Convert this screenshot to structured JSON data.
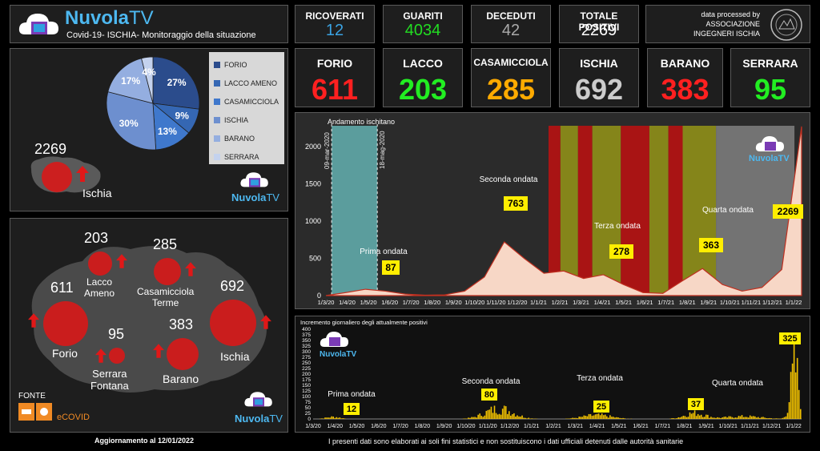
{
  "header": {
    "brand_main": "Nuvola",
    "brand_tv": "TV",
    "subtitle": "Covid-19- ISCHIA- Monitoraggio della situazione"
  },
  "stats": [
    {
      "label": "RICOVERATI",
      "value": "12",
      "color": "#3aa3e3"
    },
    {
      "label": "GUARITI",
      "value": "4034",
      "color": "#22dd22"
    },
    {
      "label": "DECEDUTI",
      "value": "42",
      "color": "#aaaaaa"
    },
    {
      "label": "TOTALE POSITIVI",
      "value": "2269",
      "color": "#ffffff"
    }
  ],
  "association": {
    "line1": "data processed by",
    "line2": "ASSOCIAZIONE",
    "line3": "INGEGNERI ISCHIA"
  },
  "towns": [
    {
      "name": "FORIO",
      "value": "611",
      "color": "#ff2020"
    },
    {
      "name": "LACCO",
      "value": "203",
      "color": "#22ee22"
    },
    {
      "name": "CASAMICCIOLA",
      "value": "285",
      "color": "#ffaa00"
    },
    {
      "name": "ISCHIA",
      "value": "692",
      "color": "#cccccc"
    },
    {
      "name": "BARANO",
      "value": "383",
      "color": "#ff2020"
    },
    {
      "name": "SERRARA",
      "value": "95",
      "color": "#22ee22"
    }
  ],
  "pie_panel": {
    "total": "2269",
    "island": "Ischia"
  },
  "map_panel": {
    "lacco": {
      "value": "203",
      "name": "Lacco\nAmeno"
    },
    "casamicciola": {
      "value": "285",
      "name": "Casamicciola\nTerme"
    },
    "forio": {
      "value": "611",
      "name": "Forio"
    },
    "ischia": {
      "value": "692",
      "name": "Ischia"
    },
    "serrara": {
      "value": "95",
      "name": "Serrara\nFontana"
    },
    "barano": {
      "value": "383",
      "name": "Barano"
    },
    "fonte": "FONTE",
    "ecovid": "eCOVID"
  },
  "footer": {
    "update": "Aggiornamento al  12/01/2022",
    "disclaimer": "I presenti dati sono elaborati ai soli fini statistici e non sostituiscono i dati ufficiali detenuti dalle autorità sanitarie"
  },
  "chart_data": [
    {
      "type": "pie",
      "categories": [
        "FORIO",
        "LACCO AMENO",
        "CASAMICCIOLA",
        "ISCHIA",
        "BARANO",
        "SERRARA"
      ],
      "values": [
        27,
        9,
        13,
        30,
        17,
        4
      ],
      "labels": [
        "27%",
        "9%",
        "13%",
        "30%",
        "17%",
        "4%"
      ],
      "colors": [
        "#2b4c8c",
        "#3567b3",
        "#3f78cc",
        "#6d8fcf",
        "#94aee0",
        "#c4d2ee"
      ]
    },
    {
      "type": "area",
      "title": "Andamento ischitano",
      "x_ticks": [
        "1/3/20",
        "1/4/20",
        "1/5/20",
        "1/6/20",
        "1/7/20",
        "1/8/20",
        "1/9/20",
        "1/10/20",
        "1/11/20",
        "1/12/20",
        "1/1/21",
        "1/2/21",
        "1/3/21",
        "1/4/21",
        "1/5/21",
        "1/6/21",
        "1/7/21",
        "1/8/21",
        "1/9/21",
        "1/10/21",
        "1/11/21",
        "1/12/21",
        "1/1/22"
      ],
      "ylim": [
        0,
        2300
      ],
      "y_ticks": [
        0,
        500,
        1000,
        1500,
        2000
      ],
      "series": [
        {
          "values": [
            0,
            40,
            85,
            60,
            20,
            5,
            10,
            60,
            250,
            720,
            500,
            300,
            330,
            230,
            280,
            150,
            40,
            30,
            200,
            363,
            150,
            60,
            110,
            350,
            2269
          ]
        }
      ],
      "bands": [
        {
          "start": "09-mar-2020",
          "end": "18-mag-2020",
          "color": "#5ea3a3"
        },
        {
          "start": 0.468,
          "end": 0.493,
          "color": "#b01313"
        },
        {
          "start": 0.493,
          "end": 0.53,
          "color": "#8a8a19"
        },
        {
          "start": 0.53,
          "end": 0.56,
          "color": "#b01313"
        },
        {
          "start": 0.56,
          "end": 0.62,
          "color": "#8a8a19"
        },
        {
          "start": 0.62,
          "end": 0.68,
          "color": "#b01313"
        },
        {
          "start": 0.68,
          "end": 0.72,
          "color": "#8a8a19"
        },
        {
          "start": 0.72,
          "end": 0.75,
          "color": "#b01313"
        },
        {
          "start": 0.75,
          "end": 0.82,
          "color": "#8a8a19"
        },
        {
          "start": 0.82,
          "end": 0.985,
          "color": "#777777"
        }
      ],
      "band_labels": [
        "09-mar-2020",
        "18-mag-2020"
      ],
      "annotations": [
        {
          "text": "Prima ondata",
          "value": "87"
        },
        {
          "text": "Seconda ondata",
          "value": "763"
        },
        {
          "text": "Terza ondata",
          "value": "278"
        },
        {
          "text": "Quarta ondata",
          "value": "363"
        },
        {
          "text": "",
          "value": "2269"
        }
      ]
    },
    {
      "type": "bar",
      "title": "Incremento giornaliero degli attualmente positivi",
      "x_ticks": [
        "1/3/20",
        "1/4/20",
        "1/5/20",
        "1/6/20",
        "1/7/20",
        "1/8/20",
        "1/9/20",
        "1/10/20",
        "1/11/20",
        "1/12/20",
        "1/1/21",
        "1/2/21",
        "1/3/21",
        "1/4/21",
        "1/5/21",
        "1/6/21",
        "1/7/21",
        "1/8/21",
        "1/9/21",
        "1/10/21",
        "1/11/21",
        "1/12/21",
        "1/1/22"
      ],
      "ylim": [
        0,
        400
      ],
      "y_ticks": [
        0,
        25,
        50,
        75,
        100,
        125,
        150,
        175,
        200,
        225,
        250,
        275,
        300,
        325,
        350,
        375,
        400
      ],
      "annotations": [
        {
          "text": "Prima ondata",
          "value": "12"
        },
        {
          "text": "Seconda ondata",
          "value": "80"
        },
        {
          "text": "Terza ondata",
          "value": "25"
        },
        {
          "text": "Quarta ondata",
          "value": "37"
        },
        {
          "text": "",
          "value": "325"
        }
      ]
    }
  ]
}
